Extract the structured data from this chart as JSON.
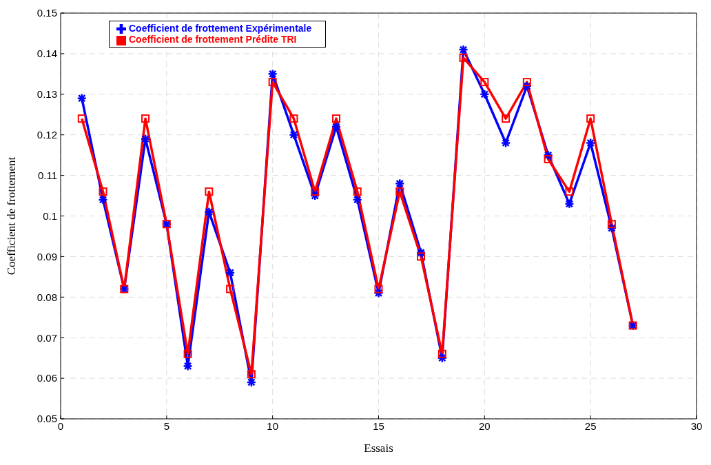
{
  "chart_data": {
    "type": "line",
    "xlabel": "Essais",
    "ylabel": "Coefficient de frottement",
    "x": [
      1,
      2,
      3,
      4,
      5,
      6,
      7,
      8,
      9,
      10,
      11,
      12,
      13,
      14,
      15,
      16,
      17,
      18,
      19,
      20,
      21,
      22,
      23,
      24,
      25,
      26,
      27
    ],
    "series": [
      {
        "name": "Coefficient de frottement Expérimentale",
        "color": "#0000ff",
        "marker": "cross",
        "values": [
          0.129,
          0.104,
          0.082,
          0.119,
          0.098,
          0.063,
          0.101,
          0.086,
          0.059,
          0.135,
          0.12,
          0.105,
          0.122,
          0.104,
          0.081,
          0.108,
          0.091,
          0.065,
          0.141,
          0.13,
          0.118,
          0.132,
          0.115,
          0.103,
          0.118,
          0.097,
          0.073
        ]
      },
      {
        "name": "Coefficient de frottement Prédite TRI",
        "color": "#ff0000",
        "marker": "square",
        "values": [
          0.124,
          0.106,
          0.082,
          0.124,
          0.098,
          0.066,
          0.106,
          0.082,
          0.061,
          0.133,
          0.124,
          0.106,
          0.124,
          0.106,
          0.082,
          0.106,
          0.09,
          0.066,
          0.139,
          0.133,
          0.124,
          0.133,
          0.114,
          0.106,
          0.124,
          0.098,
          0.073
        ]
      }
    ],
    "xlim": [
      0,
      30
    ],
    "xticks": [
      0,
      5,
      10,
      15,
      20,
      25,
      30
    ],
    "ylim": [
      0.05,
      0.15
    ],
    "yticks": [
      0.05,
      0.06,
      0.07,
      0.08,
      0.09,
      0.1,
      0.11,
      0.12,
      0.13,
      0.14,
      0.15
    ],
    "grid": true,
    "legend": "top left",
    "line_style": "solid"
  }
}
